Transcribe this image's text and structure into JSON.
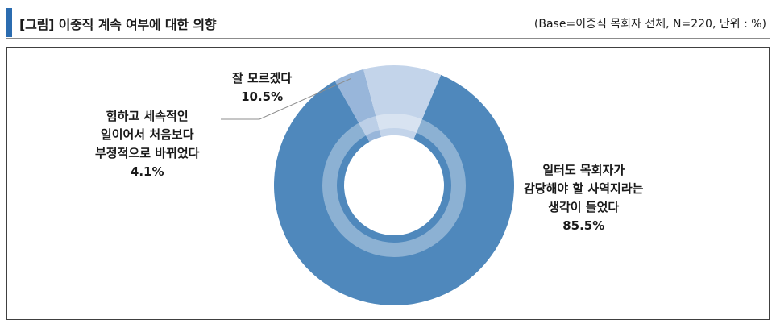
{
  "header": {
    "title": "[그림] 이중직 계속 여부에 대한 의향",
    "note": "(Base=이중직 목회자 전체, N=220, 단위 : %)"
  },
  "colors": {
    "accent_bar": "#2b6cb0"
  },
  "chart_data": {
    "type": "pie",
    "donut": true,
    "title": "[그림] 이중직 계속 여부에 대한 의향",
    "base_note": "(Base=이중직 목회자 전체, N=220, 단위 : %)",
    "unit": "%",
    "slices": [
      {
        "label_lines": [
          "일터도 목회자가",
          "감당해야 할 사역지라는",
          "생각이 들었다"
        ],
        "value": 85.5,
        "value_label": "85.5%",
        "color": "#4f88bc"
      },
      {
        "label_lines": [
          "험하고 세속적인",
          "일이어서 처음보다",
          "부정적으로 바뀌었다"
        ],
        "value": 4.1,
        "value_label": "4.1%",
        "color": "#98b6da"
      },
      {
        "label_lines": [
          "잘 모르겠다"
        ],
        "value": 10.5,
        "value_label": "10.5%",
        "color": "#c3d4ea"
      }
    ]
  }
}
